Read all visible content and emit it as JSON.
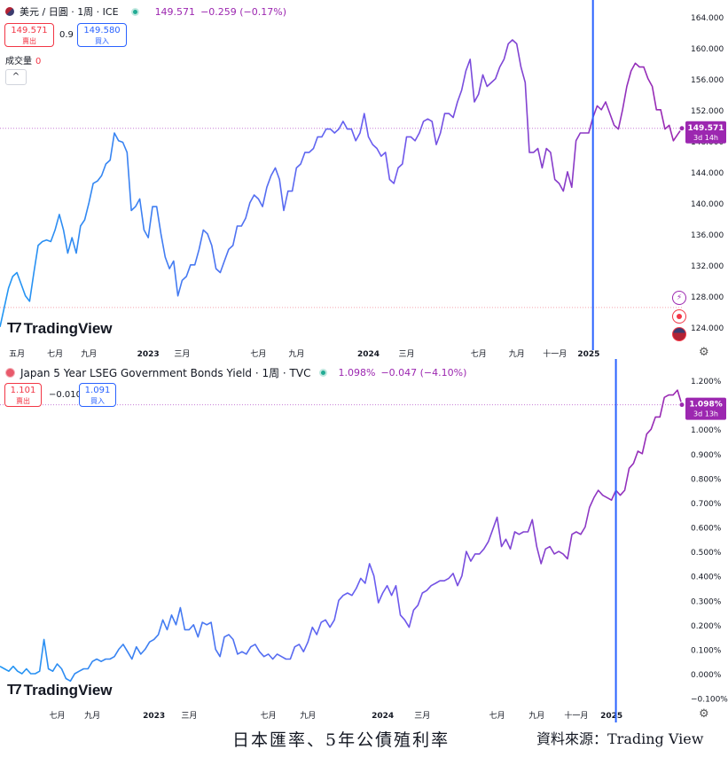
{
  "top_header": {
    "symbol": "美元 / 日圓 · 1周 · ICE",
    "price": "149.571",
    "change": "−0.259 (−0.17%)",
    "sell_price": "149.571",
    "sell_label": "賣出",
    "spread": "0.9",
    "buy_price": "149.580",
    "buy_label": "買入",
    "volume_label": "成交量",
    "volume_value": "0",
    "collapse_glyph": "^"
  },
  "bottom_header": {
    "symbol": "Japan 5 Year LSEG Government Bonds Yield · 1周 · TVC",
    "price": "1.098%",
    "change": "−0.047 (−4.10%)",
    "sell_price": "1.101",
    "sell_label": "賣出",
    "spread": "−0.010",
    "buy_price": "1.091",
    "buy_label": "買入"
  },
  "logo_text": "TradingView",
  "caption": "日本匯率、5年公債殖利率",
  "source": "資料來源：Trading View",
  "gear_icon": "gear-icon",
  "colors": {
    "purple": "#9c27b0",
    "blue": "#2196f3",
    "crosshair": "#2962ff",
    "sell": "#f23645",
    "buy": "#2962ff"
  },
  "chart_data": [
    {
      "type": "line",
      "title": "美元 / 日圓 · 1周 · ICE",
      "ylim": [
        121,
        165
      ],
      "y_ticks": [
        "164.000",
        "160.000",
        "156.000",
        "152.000",
        "148.000",
        "144.000",
        "140.000",
        "136.000",
        "132.000",
        "128.000",
        "124.000"
      ],
      "y_tick_values": [
        164,
        160,
        156,
        152,
        148,
        144,
        140,
        136,
        132,
        128,
        124
      ],
      "x_ticks": [
        {
          "label": "五月",
          "t": 4
        },
        {
          "label": "七月",
          "t": 13
        },
        {
          "label": "九月",
          "t": 21
        },
        {
          "label": "2023",
          "t": 35
        },
        {
          "label": "三月",
          "t": 43
        },
        {
          "label": "七月",
          "t": 61
        },
        {
          "label": "九月",
          "t": 70
        },
        {
          "label": "2024",
          "t": 87
        },
        {
          "label": "三月",
          "t": 96
        },
        {
          "label": "七月",
          "t": 113
        },
        {
          "label": "九月",
          "t": 122
        },
        {
          "label": "十一月",
          "t": 131
        },
        {
          "label": "2025",
          "t": 139
        }
      ],
      "last_price_label": "149.571",
      "last_price_sub": "3d 14h",
      "crosshair_t": 140,
      "dashed_level": 126.5,
      "series": [
        {
          "values": [
            124.0,
            126.5,
            129.0,
            130.5,
            131.0,
            129.5,
            128.0,
            127.3,
            131.0,
            134.5,
            135.0,
            135.2,
            135.0,
            136.5,
            138.5,
            136.5,
            133.5,
            135.5,
            133.5,
            137.0,
            137.8,
            140.0,
            142.5,
            142.8,
            143.5,
            145.0,
            145.5,
            149.0,
            148.0,
            147.8,
            146.5,
            139.0,
            139.5,
            140.5,
            136.5,
            135.5,
            139.5,
            139.5,
            136.0,
            133.0,
            131.5,
            132.5,
            128.0,
            130.0,
            130.5,
            132.0,
            132.0,
            134.0,
            136.5,
            136.0,
            134.5,
            131.5,
            131.0,
            132.5,
            134.0,
            134.5,
            137.0,
            137.0,
            138.0,
            140.0,
            141.0,
            140.5,
            139.5,
            142.0,
            143.5,
            144.5,
            143.0,
            139.0,
            141.5,
            141.5,
            144.5,
            145.0,
            146.5,
            146.5,
            147.0,
            148.5,
            148.5,
            149.5,
            149.5,
            149.0,
            149.5,
            150.5,
            149.5,
            149.5,
            148.0,
            149.0,
            151.5,
            148.5,
            147.5,
            147.0,
            146.0,
            146.5,
            143.0,
            142.5,
            144.5,
            145.0,
            148.5,
            148.5,
            148.0,
            149.0,
            150.5,
            150.8,
            150.5,
            147.5,
            149.0,
            151.5,
            151.5,
            151.0,
            153.0,
            154.5,
            157.0,
            158.5,
            153.0,
            154.0,
            156.5,
            155.0,
            155.5,
            156.0,
            157.5,
            158.5,
            160.5,
            161.0,
            160.5,
            157.5,
            155.5,
            146.5,
            146.5,
            147.0,
            144.5,
            147.0,
            146.5,
            143.0,
            142.5,
            141.5,
            144.0,
            142.0,
            148.0,
            149.0,
            149.0,
            149.0,
            151.0,
            152.5,
            152.0,
            153.0,
            151.5,
            150.0,
            149.5,
            152.0,
            155.0,
            157.0,
            158.0,
            157.5,
            157.5,
            156.0,
            155.0,
            152.0,
            152.0,
            149.5,
            150.0,
            148.0,
            148.8,
            149.6
          ]
        }
      ]
    },
    {
      "type": "line",
      "title": "Japan 5 Year LSEG Government Bonds Yield · 1周 · TVC",
      "ylim": [
        -0.145,
        1.24
      ],
      "y_ticks": [
        "1.200%",
        "1.100%",
        "1.000%",
        "0.900%",
        "0.800%",
        "0.700%",
        "0.600%",
        "0.500%",
        "0.400%",
        "0.300%",
        "0.200%",
        "0.100%",
        "0.000%",
        "−0.100%"
      ],
      "y_tick_values": [
        1.2,
        1.1,
        1.0,
        0.9,
        0.8,
        0.7,
        0.6,
        0.5,
        0.4,
        0.3,
        0.2,
        0.1,
        0.0,
        -0.1
      ],
      "x_ticks": [
        {
          "label": "七月",
          "t": 13
        },
        {
          "label": "九月",
          "t": 21
        },
        {
          "label": "2023",
          "t": 35
        },
        {
          "label": "三月",
          "t": 43
        },
        {
          "label": "七月",
          "t": 61
        },
        {
          "label": "九月",
          "t": 70
        },
        {
          "label": "2024",
          "t": 87
        },
        {
          "label": "三月",
          "t": 96
        },
        {
          "label": "七月",
          "t": 113
        },
        {
          "label": "九月",
          "t": 122
        },
        {
          "label": "十一月",
          "t": 131
        },
        {
          "label": "2025",
          "t": 139
        }
      ],
      "last_price_label": "1.098%",
      "last_price_sub": "3d 13h",
      "crosshair_t": 140,
      "series": [
        {
          "values": [
            0.03,
            0.02,
            0.01,
            0.03,
            0.01,
            0.0,
            0.02,
            0.0,
            0.0,
            0.01,
            0.14,
            0.02,
            0.01,
            0.04,
            0.02,
            -0.02,
            -0.03,
            0.0,
            0.01,
            0.02,
            0.02,
            0.05,
            0.06,
            0.05,
            0.06,
            0.06,
            0.07,
            0.1,
            0.12,
            0.09,
            0.06,
            0.11,
            0.08,
            0.1,
            0.13,
            0.14,
            0.16,
            0.22,
            0.18,
            0.24,
            0.2,
            0.27,
            0.18,
            0.18,
            0.2,
            0.15,
            0.21,
            0.2,
            0.21,
            0.1,
            0.07,
            0.15,
            0.16,
            0.14,
            0.08,
            0.09,
            0.08,
            0.11,
            0.12,
            0.09,
            0.07,
            0.08,
            0.06,
            0.08,
            0.07,
            0.06,
            0.06,
            0.11,
            0.12,
            0.09,
            0.13,
            0.19,
            0.16,
            0.21,
            0.22,
            0.19,
            0.22,
            0.3,
            0.32,
            0.33,
            0.32,
            0.35,
            0.39,
            0.37,
            0.45,
            0.4,
            0.29,
            0.33,
            0.36,
            0.32,
            0.36,
            0.24,
            0.22,
            0.19,
            0.26,
            0.28,
            0.33,
            0.34,
            0.36,
            0.37,
            0.38,
            0.38,
            0.39,
            0.41,
            0.36,
            0.4,
            0.5,
            0.46,
            0.49,
            0.49,
            0.51,
            0.54,
            0.59,
            0.64,
            0.52,
            0.55,
            0.51,
            0.58,
            0.57,
            0.58,
            0.58,
            0.63,
            0.52,
            0.45,
            0.51,
            0.52,
            0.49,
            0.5,
            0.49,
            0.47,
            0.57,
            0.58,
            0.57,
            0.6,
            0.68,
            0.72,
            0.75,
            0.73,
            0.72,
            0.71,
            0.75,
            0.73,
            0.75,
            0.84,
            0.86,
            0.91,
            0.9,
            0.98,
            1.0,
            1.05,
            1.05,
            1.13,
            1.14,
            1.14,
            1.16,
            1.1
          ]
        }
      ]
    }
  ]
}
